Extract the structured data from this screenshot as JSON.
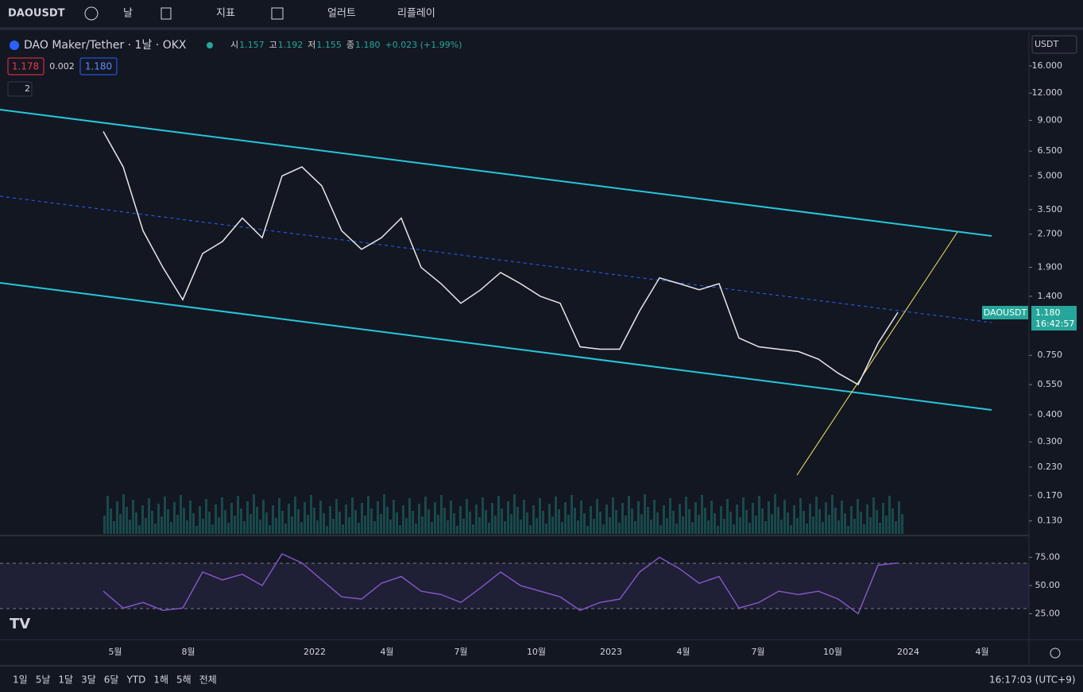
{
  "toolbar": {
    "symbol": "DAOUSDT",
    "interval": "날",
    "indicators": "지표",
    "alerts": "얼러트",
    "replay": "리플레이"
  },
  "legend": {
    "title": "DAO Maker/Tether · 1날 · OKX",
    "open_label": "시",
    "open": "1.157",
    "high_label": "고",
    "high": "1.192",
    "low_label": "저",
    "low": "1.155",
    "close_label": "종",
    "close": "1.180",
    "change": "+0.023 (+1.99%)",
    "bid": "1.178",
    "spread": "0.002",
    "ask": "1.180",
    "indicator_count": "2"
  },
  "price_axis": {
    "currency": "USDT",
    "ticks": [
      {
        "value": 16,
        "label": "16.000"
      },
      {
        "value": 12,
        "label": "12.000"
      },
      {
        "value": 9,
        "label": "9.000"
      },
      {
        "value": 6.5,
        "label": "6.500"
      },
      {
        "value": 5,
        "label": "5.000"
      },
      {
        "value": 3.5,
        "label": "3.500"
      },
      {
        "value": 2.7,
        "label": "2.700"
      },
      {
        "value": 1.9,
        "label": "1.900"
      },
      {
        "value": 1.4,
        "label": "1.400"
      },
      {
        "value": 0.75,
        "label": "0.750"
      },
      {
        "value": 0.55,
        "label": "0.550"
      },
      {
        "value": 0.4,
        "label": "0.400"
      },
      {
        "value": 0.3,
        "label": "0.300"
      },
      {
        "value": 0.23,
        "label": "0.230"
      },
      {
        "value": 0.17,
        "label": "0.170"
      },
      {
        "value": 0.13,
        "label": "0.130"
      }
    ],
    "last_symbol": "DAOUSDT",
    "last_price": "1.180",
    "countdown": "16:42:57"
  },
  "price_series": {
    "color": "#e8e8e8",
    "values": [
      8.0,
      5.5,
      2.8,
      1.9,
      1.35,
      2.2,
      2.5,
      3.2,
      2.6,
      5.0,
      5.5,
      4.5,
      2.8,
      2.3,
      2.6,
      3.2,
      1.9,
      1.6,
      1.3,
      1.5,
      1.8,
      1.6,
      1.4,
      1.3,
      0.82,
      0.8,
      0.8,
      1.2,
      1.7,
      1.6,
      1.5,
      1.6,
      0.9,
      0.82,
      0.8,
      0.78,
      0.72,
      0.62,
      0.55,
      0.85,
      1.18
    ]
  },
  "rsi": {
    "color": "#7e57c2",
    "ticks": [
      {
        "value": 75,
        "label": "75.00"
      },
      {
        "value": 50,
        "label": "50.00"
      },
      {
        "value": 25,
        "label": "25.00"
      }
    ],
    "values": [
      45,
      30,
      35,
      28,
      30,
      62,
      55,
      60,
      50,
      78,
      70,
      55,
      40,
      38,
      52,
      58,
      45,
      42,
      35,
      48,
      62,
      50,
      45,
      40,
      28,
      35,
      38,
      62,
      75,
      65,
      52,
      58,
      30,
      35,
      45,
      42,
      45,
      38,
      25,
      68,
      70
    ]
  },
  "time_axis": [
    "5월",
    "8월",
    "2022",
    "4월",
    "7월",
    "10월",
    "2023",
    "4월",
    "7월",
    "10월",
    "2024",
    "4월"
  ],
  "bottom_bar": {
    "ranges": [
      "1일",
      "5날",
      "1달",
      "3달",
      "6달",
      "YTD",
      "1해",
      "5해",
      "전체"
    ],
    "clock": "16:17:03 (UTC+9)"
  }
}
